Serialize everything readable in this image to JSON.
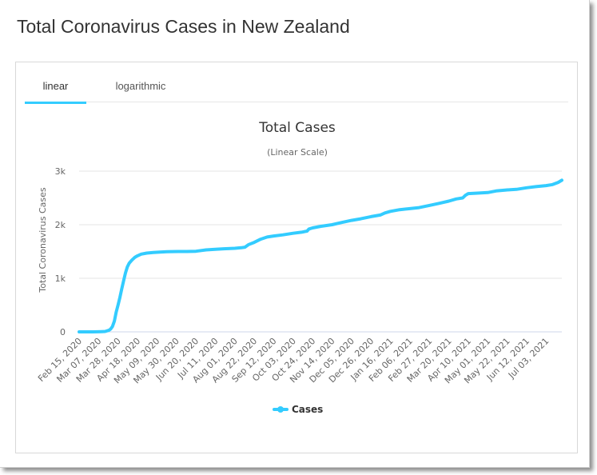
{
  "page_title": "Total Coronavirus Cases in New Zealand",
  "tabs": [
    {
      "label": "linear",
      "active": true
    },
    {
      "label": "logarithmic",
      "active": false
    }
  ],
  "colors": {
    "series": "#33ccff",
    "tab_accent": "#33ccff",
    "grid": "#e6e6e6"
  },
  "chart_data": {
    "type": "line",
    "title": "Total Cases",
    "subtitle": "(Linear Scale)",
    "xlabel": "",
    "ylabel": "Total Coronavirus Cases",
    "ylim": [
      0,
      3000
    ],
    "yticks": [
      0,
      1000,
      2000,
      3000
    ],
    "ytick_labels": [
      "0",
      "1k",
      "2k",
      "3k"
    ],
    "grid": true,
    "legend_position": "bottom-center",
    "x_tick_labels": [
      "Feb 15, 2020",
      "Mar 07, 2020",
      "Mar 28, 2020",
      "Apr 18, 2020",
      "May 09, 2020",
      "May 30, 2020",
      "Jun 20, 2020",
      "Jul 11, 2020",
      "Aug 01, 2020",
      "Aug 22, 2020",
      "Sep 12, 2020",
      "Oct 03, 2020",
      "Oct 24, 2020",
      "Nov 14, 2020",
      "Dec 05, 2020",
      "Dec 26, 2020",
      "Jan 16, 2021",
      "Feb 06, 2021",
      "Feb 27, 2021",
      "Mar 20, 2021",
      "Apr 10, 2021",
      "May 01, 2021",
      "May 22, 2021",
      "Jun 12, 2021",
      "Jul 03, 2021"
    ],
    "series": [
      {
        "name": "Cases",
        "color": "#33ccff",
        "points": [
          [
            "2020-02-15",
            0
          ],
          [
            "2020-03-01",
            0
          ],
          [
            "2020-03-10",
            5
          ],
          [
            "2020-03-14",
            8
          ],
          [
            "2020-03-18",
            28
          ],
          [
            "2020-03-20",
            52
          ],
          [
            "2020-03-22",
            100
          ],
          [
            "2020-03-24",
            200
          ],
          [
            "2020-03-26",
            370
          ],
          [
            "2020-03-28",
            500
          ],
          [
            "2020-03-30",
            640
          ],
          [
            "2020-04-01",
            800
          ],
          [
            "2020-04-03",
            950
          ],
          [
            "2020-04-05",
            1100
          ],
          [
            "2020-04-07",
            1210
          ],
          [
            "2020-04-09",
            1280
          ],
          [
            "2020-04-12",
            1340
          ],
          [
            "2020-04-15",
            1390
          ],
          [
            "2020-04-18",
            1420
          ],
          [
            "2020-04-22",
            1450
          ],
          [
            "2020-04-28",
            1470
          ],
          [
            "2020-05-05",
            1480
          ],
          [
            "2020-05-12",
            1490
          ],
          [
            "2020-05-20",
            1495
          ],
          [
            "2020-06-01",
            1500
          ],
          [
            "2020-06-10",
            1500
          ],
          [
            "2020-06-20",
            1505
          ],
          [
            "2020-07-01",
            1530
          ],
          [
            "2020-07-11",
            1540
          ],
          [
            "2020-07-20",
            1550
          ],
          [
            "2020-08-01",
            1560
          ],
          [
            "2020-08-08",
            1570
          ],
          [
            "2020-08-12",
            1580
          ],
          [
            "2020-08-16",
            1630
          ],
          [
            "2020-08-22",
            1670
          ],
          [
            "2020-08-29",
            1730
          ],
          [
            "2020-09-05",
            1770
          ],
          [
            "2020-09-12",
            1790
          ],
          [
            "2020-09-22",
            1810
          ],
          [
            "2020-10-03",
            1840
          ],
          [
            "2020-10-12",
            1860
          ],
          [
            "2020-10-18",
            1880
          ],
          [
            "2020-10-20",
            1920
          ],
          [
            "2020-10-24",
            1940
          ],
          [
            "2020-11-02",
            1970
          ],
          [
            "2020-11-14",
            2000
          ],
          [
            "2020-11-24",
            2040
          ],
          [
            "2020-12-05",
            2080
          ],
          [
            "2020-12-15",
            2110
          ],
          [
            "2020-12-26",
            2150
          ],
          [
            "2021-01-05",
            2180
          ],
          [
            "2021-01-10",
            2220
          ],
          [
            "2021-01-16",
            2250
          ],
          [
            "2021-01-26",
            2280
          ],
          [
            "2021-02-06",
            2300
          ],
          [
            "2021-02-16",
            2320
          ],
          [
            "2021-02-27",
            2360
          ],
          [
            "2021-03-10",
            2400
          ],
          [
            "2021-03-20",
            2440
          ],
          [
            "2021-03-28",
            2480
          ],
          [
            "2021-04-04",
            2500
          ],
          [
            "2021-04-07",
            2550
          ],
          [
            "2021-04-10",
            2580
          ],
          [
            "2021-04-20",
            2590
          ],
          [
            "2021-05-01",
            2600
          ],
          [
            "2021-05-10",
            2630
          ],
          [
            "2021-05-22",
            2650
          ],
          [
            "2021-06-01",
            2660
          ],
          [
            "2021-06-12",
            2690
          ],
          [
            "2021-06-22",
            2710
          ],
          [
            "2021-07-03",
            2730
          ],
          [
            "2021-07-10",
            2750
          ],
          [
            "2021-07-16",
            2790
          ],
          [
            "2021-07-20",
            2830
          ]
        ]
      }
    ]
  }
}
